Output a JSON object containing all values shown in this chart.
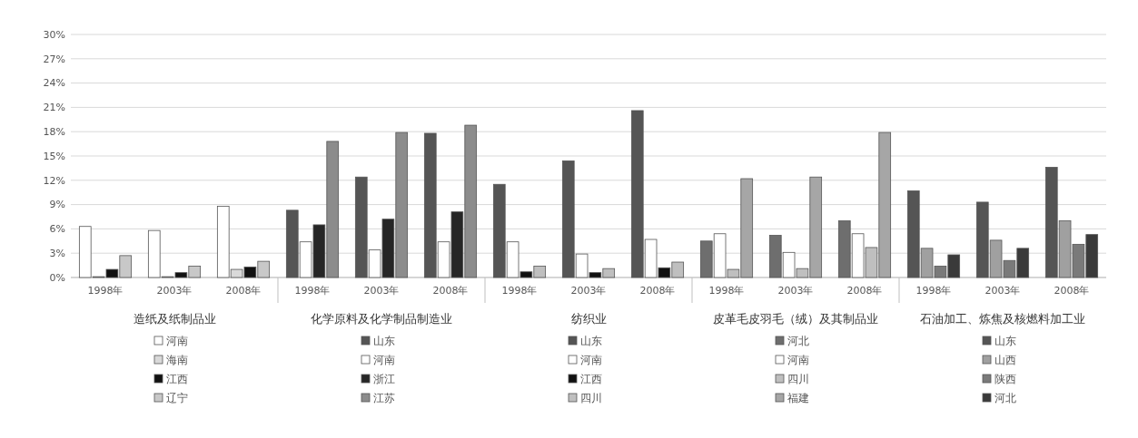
{
  "chart_data": {
    "type": "bar",
    "categories": [
      "1998年",
      "2003年",
      "2008年",
      "1998年",
      "2003年",
      "2008年",
      "1998年",
      "2003年",
      "2008年",
      "1998年",
      "2003年",
      "2008年",
      "1998年",
      "2003年",
      "2008年"
    ],
    "ylim": [
      0,
      30
    ],
    "yticks": [
      {
        "value": 0,
        "label": "0%"
      },
      {
        "value": 3,
        "label": "3%"
      },
      {
        "value": 6,
        "label": "6%"
      },
      {
        "value": 9,
        "label": "9%"
      },
      {
        "value": 12,
        "label": "12%"
      },
      {
        "value": 15,
        "label": "15%"
      },
      {
        "value": 18,
        "label": "18%"
      },
      {
        "value": 21,
        "label": "21%"
      },
      {
        "value": 24,
        "label": "24%"
      },
      {
        "value": 27,
        "label": "27%"
      },
      {
        "value": 30,
        "label": "30%"
      }
    ],
    "grid": "y",
    "legend": "bottom",
    "annotations": [
      "造纸及纸制品业",
      "化学原料及化学制品制造业",
      "纺织业",
      "皮革毛皮羽毛（绒）及其制品业",
      "石油加工、炼焦及核燃料加工业"
    ],
    "series": [
      {
        "name": "河南",
        "color": "#ffffff",
        "values": [
          6.3,
          5.8,
          8.8,
          null,
          null,
          null,
          null,
          null,
          null,
          null,
          null,
          null,
          null,
          null,
          null
        ]
      },
      {
        "name": "海南",
        "color": "#d9d9d9",
        "values": [
          0.1,
          0.1,
          1.0,
          null,
          null,
          null,
          null,
          null,
          null,
          null,
          null,
          null,
          null,
          null,
          null
        ]
      },
      {
        "name": "江西",
        "color": "#111111",
        "values": [
          1.0,
          0.6,
          1.3,
          null,
          null,
          null,
          null,
          null,
          null,
          null,
          null,
          null,
          null,
          null,
          null
        ]
      },
      {
        "name": "辽宁",
        "color": "#c8c8c8",
        "values": [
          2.7,
          1.4,
          2.0,
          null,
          null,
          null,
          null,
          null,
          null,
          null,
          null,
          null,
          null,
          null,
          null
        ]
      },
      {
        "name": "山东",
        "color": "#555555",
        "values": [
          null,
          null,
          null,
          8.3,
          12.4,
          17.8,
          null,
          null,
          null,
          null,
          null,
          null,
          null,
          null,
          null
        ]
      },
      {
        "name": "河南",
        "color": "#ffffff",
        "values": [
          null,
          null,
          null,
          4.4,
          3.4,
          4.4,
          null,
          null,
          null,
          null,
          null,
          null,
          null,
          null,
          null
        ]
      },
      {
        "name": "浙江",
        "color": "#262626",
        "values": [
          null,
          null,
          null,
          6.5,
          7.2,
          8.1,
          null,
          null,
          null,
          null,
          null,
          null,
          null,
          null,
          null
        ]
      },
      {
        "name": "江苏",
        "color": "#8c8c8c",
        "values": [
          null,
          null,
          null,
          16.8,
          17.9,
          18.8,
          null,
          null,
          null,
          null,
          null,
          null,
          null,
          null,
          null
        ]
      },
      {
        "name": "山东",
        "color": "#555555",
        "values": [
          null,
          null,
          null,
          null,
          null,
          null,
          11.5,
          14.4,
          20.6,
          null,
          null,
          null,
          null,
          null,
          null
        ]
      },
      {
        "name": "河南",
        "color": "#ffffff",
        "values": [
          null,
          null,
          null,
          null,
          null,
          null,
          4.4,
          2.9,
          4.7,
          null,
          null,
          null,
          null,
          null,
          null
        ]
      },
      {
        "name": "江西",
        "color": "#111111",
        "values": [
          null,
          null,
          null,
          null,
          null,
          null,
          0.7,
          0.6,
          1.2,
          null,
          null,
          null,
          null,
          null,
          null
        ]
      },
      {
        "name": "四川",
        "color": "#bfbfbf",
        "values": [
          null,
          null,
          null,
          null,
          null,
          null,
          1.4,
          1.1,
          1.9,
          null,
          null,
          null,
          null,
          null,
          null
        ]
      },
      {
        "name": "河北",
        "color": "#6e6e6e",
        "values": [
          null,
          null,
          null,
          null,
          null,
          null,
          null,
          null,
          null,
          4.5,
          5.2,
          7.0,
          null,
          null,
          null
        ]
      },
      {
        "name": "河南",
        "color": "#ffffff",
        "values": [
          null,
          null,
          null,
          null,
          null,
          null,
          null,
          null,
          null,
          5.4,
          3.1,
          5.4,
          null,
          null,
          null
        ]
      },
      {
        "name": "四川",
        "color": "#bfbfbf",
        "values": [
          null,
          null,
          null,
          null,
          null,
          null,
          null,
          null,
          null,
          1.0,
          1.1,
          3.7,
          null,
          null,
          null
        ]
      },
      {
        "name": "福建",
        "color": "#a6a6a6",
        "values": [
          null,
          null,
          null,
          null,
          null,
          null,
          null,
          null,
          null,
          12.2,
          12.4,
          17.9,
          null,
          null,
          null
        ]
      },
      {
        "name": "山东",
        "color": "#555555",
        "values": [
          null,
          null,
          null,
          null,
          null,
          null,
          null,
          null,
          null,
          null,
          null,
          null,
          10.7,
          9.3,
          13.6
        ]
      },
      {
        "name": "山西",
        "color": "#a0a0a0",
        "values": [
          null,
          null,
          null,
          null,
          null,
          null,
          null,
          null,
          null,
          null,
          null,
          null,
          3.6,
          4.6,
          7.0
        ]
      },
      {
        "name": "陕西",
        "color": "#7a7a7a",
        "values": [
          null,
          null,
          null,
          null,
          null,
          null,
          null,
          null,
          null,
          null,
          null,
          null,
          1.4,
          2.1,
          4.1
        ]
      },
      {
        "name": "河北",
        "color": "#3a3a3a",
        "values": [
          null,
          null,
          null,
          null,
          null,
          null,
          null,
          null,
          null,
          null,
          null,
          null,
          2.8,
          3.6,
          5.3
        ]
      }
    ]
  }
}
